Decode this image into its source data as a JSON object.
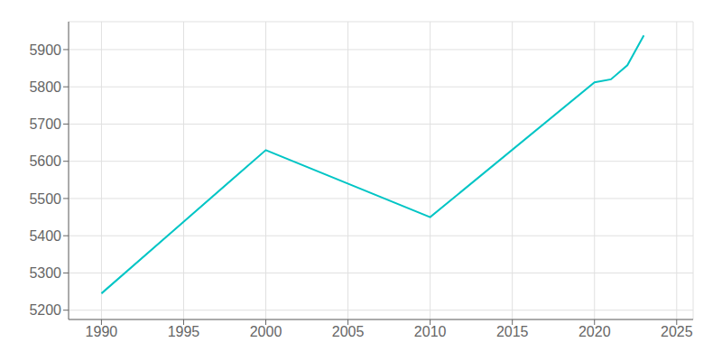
{
  "chart_data": {
    "type": "line",
    "x": [
      1990,
      2000,
      2010,
      2020,
      2021,
      2022,
      2023
    ],
    "values": [
      5245,
      5630,
      5450,
      5812,
      5820,
      5858,
      5938
    ],
    "color": "#00C5C5",
    "xlim": [
      1988,
      2026
    ],
    "xticks": [
      1990,
      1995,
      2000,
      2005,
      2010,
      2015,
      2020,
      2025
    ],
    "ylim": [
      5175,
      5975
    ],
    "yticks": [
      5200,
      5300,
      5400,
      5500,
      5600,
      5700,
      5800,
      5900
    ],
    "grid": true
  }
}
